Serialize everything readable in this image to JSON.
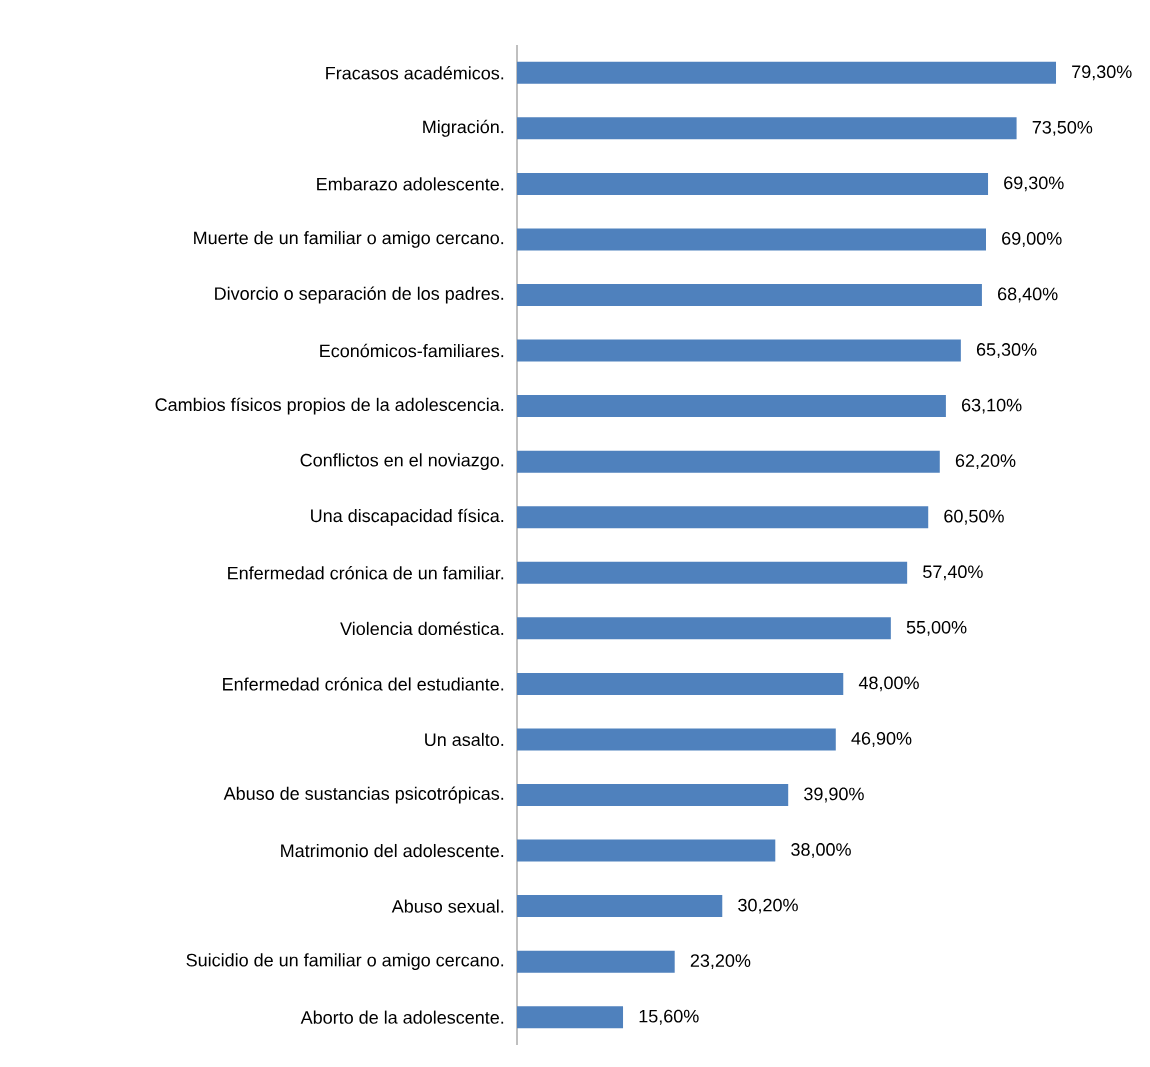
{
  "chart_data": {
    "type": "bar",
    "orientation": "horizontal",
    "color": "#4f81bd",
    "categories": [
      "Fracasos académicos.",
      "Migración.",
      "Embarazo adolescente.",
      "Muerte de un familiar o amigo cercano.",
      "Divorcio o separación de los padres.",
      "Económicos-familiares.",
      "Cambios físicos propios de la adolescencia.",
      "Conflictos en el noviazgo.",
      "Una discapacidad física.",
      "Enfermedad crónica de un familiar.",
      "Violencia doméstica.",
      "Enfermedad crónica del estudiante.",
      "Un asalto.",
      "Abuso de sustancias psicotrópicas.",
      "Matrimonio del adolescente.",
      "Abuso sexual.",
      "Suicidio de un familiar o amigo cercano.",
      "Aborto de la adolescente."
    ],
    "values": [
      79.3,
      73.5,
      69.3,
      69.0,
      68.4,
      65.3,
      63.1,
      62.2,
      60.5,
      57.4,
      55.0,
      48.0,
      46.9,
      39.9,
      38.0,
      30.2,
      23.2,
      15.6
    ],
    "value_labels": [
      "79,30%",
      "73,50%",
      "69,30%",
      "69,00%",
      "68,40%",
      "65,30%",
      "63,10%",
      "62,20%",
      "60,50%",
      "57,40%",
      "55,00%",
      "48,00%",
      "46,90%",
      "39,90%",
      "38,00%",
      "30,20%",
      "23,20%",
      "15,60%"
    ]
  }
}
